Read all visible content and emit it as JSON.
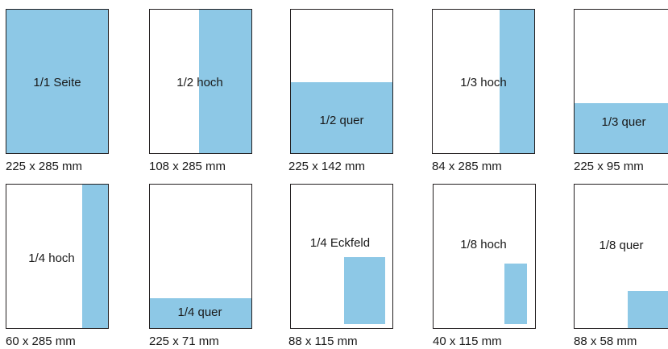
{
  "formats": [
    {
      "label": "1/1 Seite",
      "size": "225 x 285 mm"
    },
    {
      "label": "1/2 hoch",
      "size": "108 x 285 mm"
    },
    {
      "label": "1/2 quer",
      "size": "225 x 142 mm"
    },
    {
      "label": "1/3 hoch",
      "size": "84 x 285 mm"
    },
    {
      "label": "1/3 quer",
      "size": "225 x 95 mm"
    },
    {
      "label": "1/4 hoch",
      "size": "60 x 285 mm"
    },
    {
      "label": "1/4 quer",
      "size": "225 x 71 mm"
    },
    {
      "label": "1/4 Eckfeld",
      "size": "88  x 115 mm"
    },
    {
      "label": "1/8 hoch",
      "size": "40 x 115 mm"
    },
    {
      "label": "1/8 quer",
      "size": "88 x 58 mm"
    }
  ],
  "colors": {
    "ad_fill": "#8dc8e6",
    "page_border": "#231f20"
  }
}
